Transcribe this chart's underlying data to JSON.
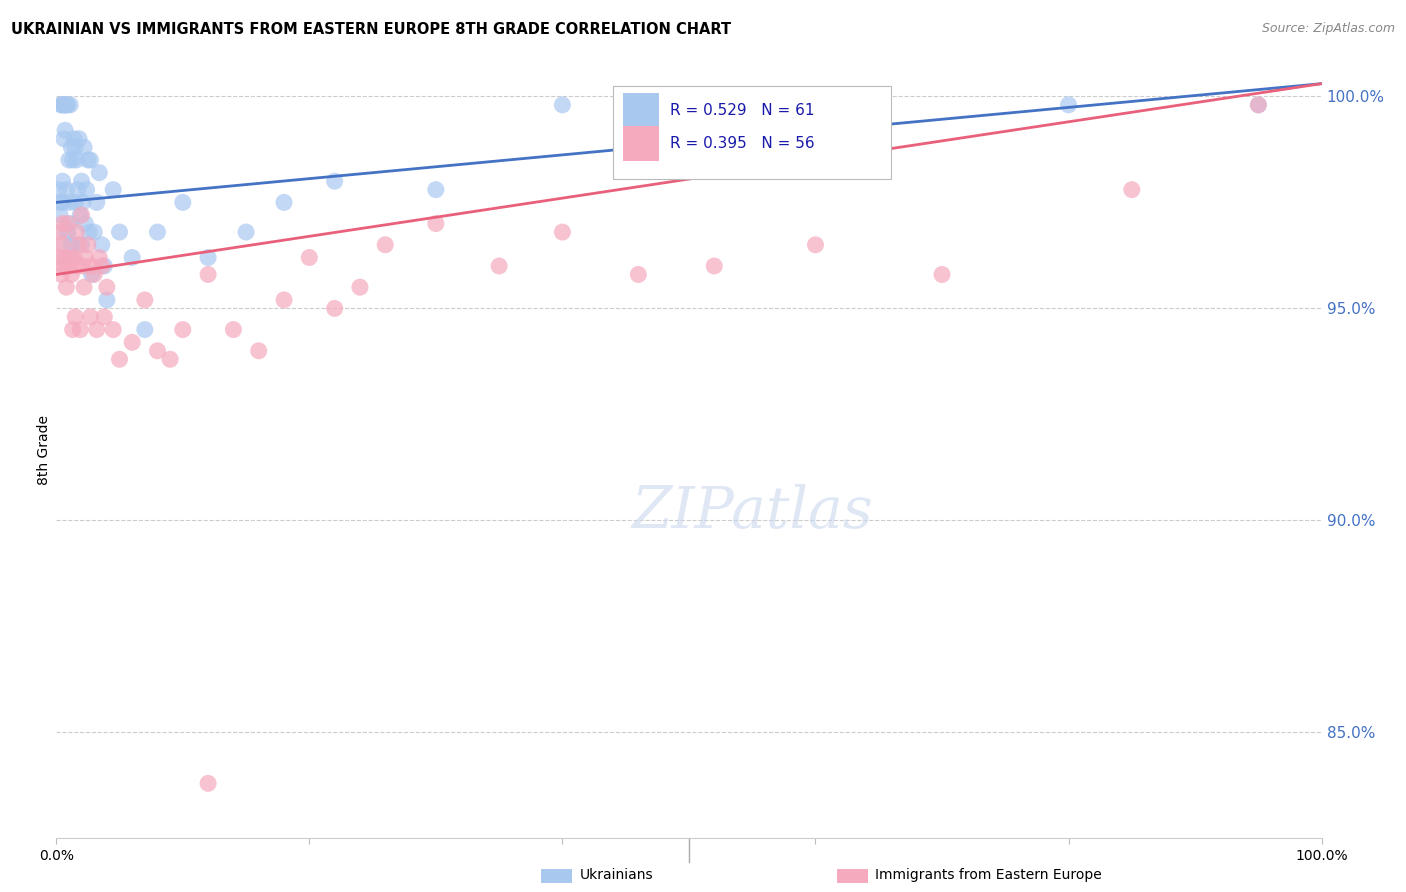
{
  "title": "UKRAINIAN VS IMMIGRANTS FROM EASTERN EUROPE 8TH GRADE CORRELATION CHART",
  "source": "Source: ZipAtlas.com",
  "ylabel": "8th Grade",
  "xmin": 0.0,
  "xmax": 1.0,
  "ymin": 0.825,
  "ymax": 1.008,
  "right_yticks": [
    0.85,
    0.9,
    0.95,
    1.0
  ],
  "right_yticklabels": [
    "85.0%",
    "90.0%",
    "95.0%",
    "100.0%"
  ],
  "blue_R": 0.529,
  "blue_N": 61,
  "pink_R": 0.395,
  "pink_N": 56,
  "blue_color": "#A8C8F0",
  "pink_color": "#F5AABE",
  "blue_line_color": "#4472C4",
  "pink_line_color": "#E8607A",
  "legend_label_blue": "Ukrainians",
  "legend_label_pink": "Immigrants from Eastern Europe",
  "blue_line_x0": 0.0,
  "blue_line_x1": 1.0,
  "blue_line_y0": 0.975,
  "blue_line_y1": 1.003,
  "pink_line_x0": 0.0,
  "pink_line_x1": 1.0,
  "pink_line_y0": 0.958,
  "pink_line_y1": 1.003,
  "blue_x": [
    0.002,
    0.003,
    0.003,
    0.004,
    0.004,
    0.005,
    0.005,
    0.006,
    0.006,
    0.006,
    0.007,
    0.007,
    0.008,
    0.008,
    0.009,
    0.009,
    0.01,
    0.01,
    0.011,
    0.011,
    0.012,
    0.012,
    0.013,
    0.014,
    0.015,
    0.015,
    0.016,
    0.017,
    0.018,
    0.019,
    0.02,
    0.02,
    0.021,
    0.022,
    0.023,
    0.024,
    0.025,
    0.026,
    0.027,
    0.028,
    0.03,
    0.032,
    0.034,
    0.036,
    0.038,
    0.04,
    0.045,
    0.05,
    0.06,
    0.07,
    0.08,
    0.1,
    0.12,
    0.15,
    0.18,
    0.22,
    0.3,
    0.4,
    0.58,
    0.8,
    0.95
  ],
  "blue_y": [
    0.978,
    0.975,
    0.972,
    0.998,
    0.998,
    0.975,
    0.98,
    0.998,
    0.998,
    0.99,
    0.998,
    0.992,
    0.998,
    0.978,
    0.998,
    0.968,
    0.985,
    0.975,
    0.998,
    0.97,
    0.988,
    0.965,
    0.985,
    0.99,
    0.975,
    0.988,
    0.985,
    0.978,
    0.99,
    0.972,
    0.965,
    0.98,
    0.975,
    0.988,
    0.97,
    0.978,
    0.985,
    0.968,
    0.985,
    0.958,
    0.968,
    0.975,
    0.982,
    0.965,
    0.96,
    0.952,
    0.978,
    0.968,
    0.962,
    0.945,
    0.968,
    0.975,
    0.962,
    0.968,
    0.975,
    0.98,
    0.978,
    0.998,
    0.998,
    0.998,
    0.998
  ],
  "pink_x": [
    0.002,
    0.003,
    0.004,
    0.005,
    0.005,
    0.006,
    0.007,
    0.008,
    0.009,
    0.01,
    0.011,
    0.012,
    0.013,
    0.014,
    0.015,
    0.016,
    0.017,
    0.018,
    0.019,
    0.02,
    0.021,
    0.022,
    0.023,
    0.025,
    0.027,
    0.028,
    0.03,
    0.032,
    0.034,
    0.036,
    0.038,
    0.04,
    0.045,
    0.05,
    0.06,
    0.07,
    0.08,
    0.09,
    0.1,
    0.12,
    0.14,
    0.16,
    0.18,
    0.2,
    0.22,
    0.24,
    0.26,
    0.3,
    0.35,
    0.4,
    0.46,
    0.52,
    0.6,
    0.7,
    0.85,
    0.95
  ],
  "pink_y": [
    0.962,
    0.968,
    0.958,
    0.97,
    0.965,
    0.96,
    0.962,
    0.955,
    0.97,
    0.96,
    0.962,
    0.958,
    0.945,
    0.962,
    0.948,
    0.968,
    0.96,
    0.965,
    0.945,
    0.972,
    0.96,
    0.955,
    0.962,
    0.965,
    0.948,
    0.96,
    0.958,
    0.945,
    0.962,
    0.96,
    0.948,
    0.955,
    0.945,
    0.938,
    0.942,
    0.952,
    0.94,
    0.938,
    0.945,
    0.958,
    0.945,
    0.94,
    0.952,
    0.962,
    0.95,
    0.955,
    0.965,
    0.97,
    0.96,
    0.968,
    0.958,
    0.96,
    0.965,
    0.958,
    0.978,
    0.998
  ],
  "pink_outlier_x": [
    0.12
  ],
  "pink_outlier_y": [
    0.838
  ]
}
